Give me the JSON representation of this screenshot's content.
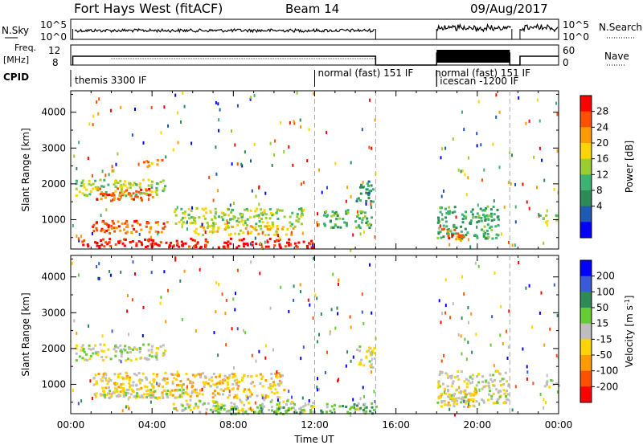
{
  "header": {
    "title": "Fort Hays West (fitACF)",
    "beam": "Beam 14",
    "date": "09/Aug/2017"
  },
  "rows": {
    "nsky": {
      "label": "N.Sky",
      "left_ticks": [
        "10^5",
        "10^0"
      ],
      "right_ticks": [
        "10^5",
        "10^0"
      ],
      "right_label": "N.Search"
    },
    "freq": {
      "label_line1": "Freq.",
      "label_line2": "[MHz]",
      "left_ticks": [
        "12",
        "8"
      ],
      "right_ticks": [
        "60",
        "0"
      ],
      "right_label": "Nave"
    },
    "cpid": {
      "label": "CPID",
      "segments": [
        {
          "label": "themis 3300 IF",
          "start_h": 0.0,
          "end_h": 12.0
        },
        {
          "label": "normal (fast) 151 IF",
          "start_h": 12.0,
          "end_h": 18.0
        },
        {
          "label": "normal (fast) 151 IF",
          "start_h": 18.0,
          "end_h": 21.6
        },
        {
          "label": "icescan -1200 IF",
          "start_h": 18.0,
          "end_h": 24.0
        }
      ]
    }
  },
  "chart_data": [
    {
      "type": "heatmap",
      "name": "power",
      "ylabel": "Slant Range [km]",
      "xlim": [
        0,
        24
      ],
      "ylim": [
        180,
        4600
      ],
      "yticks": [
        1000,
        2000,
        3000,
        4000
      ],
      "colorbar": {
        "label": "Power [dB]",
        "ticks": [
          "28",
          "24",
          "20",
          "16",
          "12",
          "8",
          "4"
        ],
        "colors": [
          "#ff0000",
          "#ff5000",
          "#ff9a00",
          "#ffd400",
          "#9acd32",
          "#3cb371",
          "#2e8b57",
          "#1e5ab4",
          "#0000ff"
        ]
      },
      "regions": [
        {
          "x": [
            0.2,
            4.6
          ],
          "y": [
            1700,
            2150
          ],
          "color_index": 4
        },
        {
          "x": [
            1.2,
            4.0
          ],
          "y": [
            1550,
            1900
          ],
          "color_index": 1
        },
        {
          "x": [
            3.5,
            4.5
          ],
          "y": [
            2500,
            2700
          ],
          "color_index": 2
        },
        {
          "x": [
            1.0,
            4.8
          ],
          "y": [
            650,
            1000
          ],
          "color_index": 1
        },
        {
          "x": [
            5.0,
            11.5
          ],
          "y": [
            900,
            1350
          ],
          "color_index": 4
        },
        {
          "x": [
            6.0,
            11.0
          ],
          "y": [
            600,
            900
          ],
          "color_index": 3
        },
        {
          "x": [
            0.5,
            12.0
          ],
          "y": [
            250,
            500
          ],
          "color_index": 0
        },
        {
          "x": [
            12.3,
            14.8
          ],
          "y": [
            800,
            1300
          ],
          "color_index": 5
        },
        {
          "x": [
            14.0,
            14.9
          ],
          "y": [
            1500,
            2100
          ],
          "color_index": 6
        },
        {
          "x": [
            18.0,
            21.0
          ],
          "y": [
            500,
            1400
          ],
          "color_index": 5
        },
        {
          "x": [
            18.2,
            19.2
          ],
          "y": [
            450,
            800
          ],
          "color_index": 1
        },
        {
          "x": [
            23.0,
            24.0
          ],
          "y": [
            950,
            1150
          ],
          "color_index": 4
        }
      ]
    },
    {
      "type": "heatmap",
      "name": "velocity",
      "ylabel": "Slant Range [km]",
      "xlabel": "Time UT",
      "xlim": [
        0,
        24
      ],
      "ylim": [
        180,
        4600
      ],
      "yticks": [
        1000,
        2000,
        3000,
        4000
      ],
      "xticks": [
        "00:00",
        "04:00",
        "08:00",
        "12:00",
        "16:00",
        "20:00",
        "00:00"
      ],
      "colorbar": {
        "label": "Velocity [m s^-1]",
        "ticks": [
          "200",
          "100",
          "50",
          "15",
          "-15",
          "-50",
          "-100",
          "-200"
        ],
        "colors": [
          "#0000ff",
          "#3a5ad8",
          "#2e8b57",
          "#66cc33",
          "#bebebe",
          "#ffd400",
          "#ff9a00",
          "#ff5000",
          "#ff0000"
        ]
      },
      "regions": [
        {
          "x": [
            0.2,
            4.6
          ],
          "y": [
            1700,
            2150
          ],
          "color_index": 4
        },
        {
          "x": [
            1.0,
            10.5
          ],
          "y": [
            650,
            1350
          ],
          "color_index": 5
        },
        {
          "x": [
            1.5,
            6.0
          ],
          "y": [
            650,
            900
          ],
          "color_index": 4
        },
        {
          "x": [
            5.0,
            12.0
          ],
          "y": [
            250,
            600
          ],
          "color_index": 4
        },
        {
          "x": [
            7.0,
            11.5
          ],
          "y": [
            200,
            400
          ],
          "color_index": 3
        },
        {
          "x": [
            12.2,
            15.0
          ],
          "y": [
            200,
            500
          ],
          "color_index": 3
        },
        {
          "x": [
            14.0,
            14.9
          ],
          "y": [
            1500,
            2100
          ],
          "color_index": 4
        },
        {
          "x": [
            18.0,
            21.5
          ],
          "y": [
            500,
            1400
          ],
          "color_index": 4
        },
        {
          "x": [
            18.0,
            20.0
          ],
          "y": [
            400,
            800
          ],
          "color_index": 5
        },
        {
          "x": [
            23.0,
            24.0
          ],
          "y": [
            950,
            1150
          ],
          "color_index": 4
        }
      ]
    }
  ]
}
